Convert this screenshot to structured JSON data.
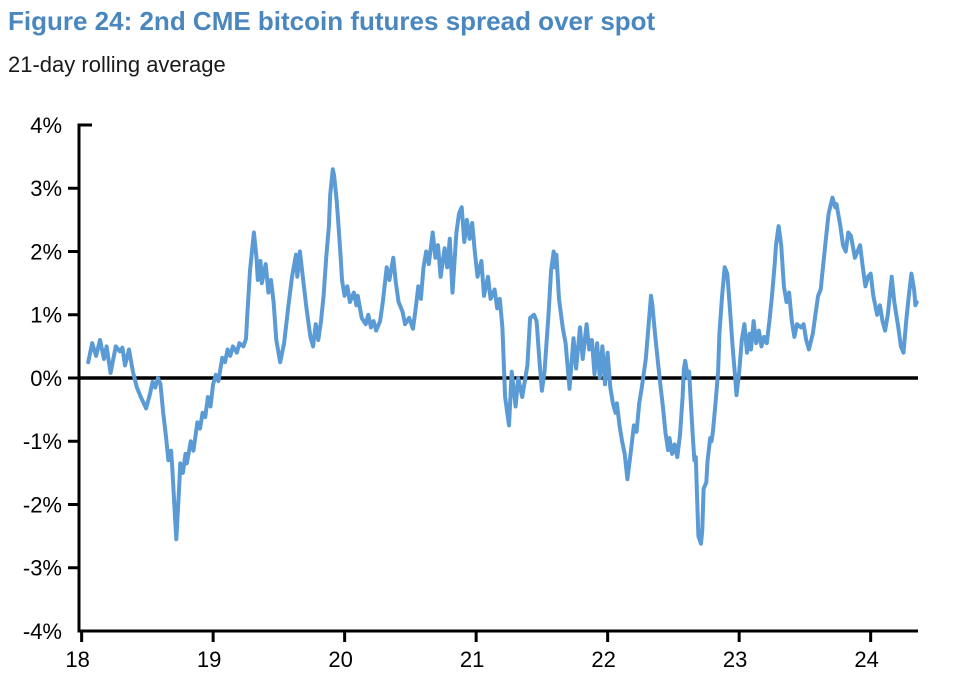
{
  "figure": {
    "title": "Figure 24: 2nd CME bitcoin futures spread over spot",
    "subtitle": "21-day rolling average"
  },
  "colors": {
    "title": "#4A87BE",
    "subtitle": "#1a1a1a",
    "line": "#5B9BD5",
    "axis": "#000000",
    "background": "#ffffff"
  },
  "chart_data": {
    "type": "line",
    "title": "Figure 24: 2nd CME bitcoin futures spread over spot",
    "subtitle": "21-day rolling average",
    "xlabel": "",
    "ylabel": "",
    "x_unit": "year (20xx)",
    "y_unit": "percent spread over spot",
    "xlim": [
      17.98,
      24.36
    ],
    "ylim": [
      -4,
      4
    ],
    "x_ticks": [
      18,
      19,
      20,
      21,
      22,
      23,
      24
    ],
    "x_tick_labels": [
      "18",
      "19",
      "20",
      "21",
      "22",
      "23",
      "24"
    ],
    "y_ticks": [
      4,
      3,
      2,
      1,
      0,
      -1,
      -2,
      -3,
      -4
    ],
    "y_tick_labels": [
      "4%",
      "3%",
      "2%",
      "1%",
      "0%",
      "-1%",
      "-2%",
      "-3%",
      "-4%"
    ],
    "grid": false,
    "zero_line": true,
    "legend_position": "none",
    "series": [
      {
        "name": "2nd CME bitcoin futures spread over spot, 21-day rolling average",
        "color": "#5B9BD5",
        "points": [
          [
            18.05,
            0.25
          ],
          [
            18.08,
            0.55
          ],
          [
            18.11,
            0.35
          ],
          [
            18.14,
            0.6
          ],
          [
            18.17,
            0.3
          ],
          [
            18.19,
            0.5
          ],
          [
            18.22,
            0.08
          ],
          [
            18.26,
            0.5
          ],
          [
            18.29,
            0.42
          ],
          [
            18.31,
            0.48
          ],
          [
            18.33,
            0.2
          ],
          [
            18.36,
            0.45
          ],
          [
            18.39,
            0.1
          ],
          [
            18.42,
            -0.15
          ],
          [
            18.45,
            -0.3
          ],
          [
            18.49,
            -0.48
          ],
          [
            18.52,
            -0.25
          ],
          [
            18.54,
            -0.06
          ],
          [
            18.56,
            -0.15
          ],
          [
            18.58,
            0.0
          ],
          [
            18.6,
            -0.1
          ],
          [
            18.62,
            -0.55
          ],
          [
            18.64,
            -0.9
          ],
          [
            18.66,
            -1.3
          ],
          [
            18.68,
            -1.15
          ],
          [
            18.69,
            -1.45
          ],
          [
            18.71,
            -2.2
          ],
          [
            18.72,
            -2.55
          ],
          [
            18.74,
            -1.8
          ],
          [
            18.75,
            -1.35
          ],
          [
            18.77,
            -1.5
          ],
          [
            18.79,
            -1.2
          ],
          [
            18.8,
            -1.35
          ],
          [
            18.83,
            -1.0
          ],
          [
            18.85,
            -1.15
          ],
          [
            18.88,
            -0.7
          ],
          [
            18.9,
            -0.8
          ],
          [
            18.92,
            -0.55
          ],
          [
            18.94,
            -0.62
          ],
          [
            18.96,
            -0.3
          ],
          [
            18.98,
            -0.45
          ],
          [
            19.0,
            -0.1
          ],
          [
            19.02,
            0.05
          ],
          [
            19.04,
            -0.05
          ],
          [
            19.06,
            0.2
          ],
          [
            19.07,
            0.32
          ],
          [
            19.09,
            0.25
          ],
          [
            19.11,
            0.45
          ],
          [
            19.13,
            0.35
          ],
          [
            19.15,
            0.5
          ],
          [
            19.18,
            0.4
          ],
          [
            19.2,
            0.55
          ],
          [
            19.23,
            0.5
          ],
          [
            19.25,
            0.62
          ],
          [
            19.26,
            1.0
          ],
          [
            19.28,
            1.7
          ],
          [
            19.31,
            2.3
          ],
          [
            19.33,
            1.9
          ],
          [
            19.34,
            1.55
          ],
          [
            19.36,
            1.85
          ],
          [
            19.37,
            1.5
          ],
          [
            19.4,
            1.8
          ],
          [
            19.42,
            1.35
          ],
          [
            19.44,
            1.55
          ],
          [
            19.46,
            1.2
          ],
          [
            19.48,
            0.6
          ],
          [
            19.51,
            0.25
          ],
          [
            19.54,
            0.55
          ],
          [
            19.57,
            1.1
          ],
          [
            19.6,
            1.6
          ],
          [
            19.63,
            1.95
          ],
          [
            19.64,
            1.6
          ],
          [
            19.66,
            2.0
          ],
          [
            19.69,
            1.45
          ],
          [
            19.71,
            1.1
          ],
          [
            19.74,
            0.65
          ],
          [
            19.76,
            0.5
          ],
          [
            19.78,
            0.85
          ],
          [
            19.8,
            0.6
          ],
          [
            19.82,
            0.9
          ],
          [
            19.84,
            1.3
          ],
          [
            19.86,
            1.9
          ],
          [
            19.88,
            2.4
          ],
          [
            19.89,
            2.9
          ],
          [
            19.91,
            3.3
          ],
          [
            19.92,
            3.2
          ],
          [
            19.94,
            2.8
          ],
          [
            19.95,
            2.5
          ],
          [
            19.97,
            1.9
          ],
          [
            19.98,
            1.55
          ],
          [
            20.0,
            1.3
          ],
          [
            20.02,
            1.45
          ],
          [
            20.04,
            1.2
          ],
          [
            20.07,
            1.35
          ],
          [
            20.09,
            1.15
          ],
          [
            20.1,
            1.3
          ],
          [
            20.13,
            0.95
          ],
          [
            20.16,
            0.85
          ],
          [
            20.18,
            1.0
          ],
          [
            20.2,
            0.8
          ],
          [
            20.22,
            0.9
          ],
          [
            20.24,
            0.75
          ],
          [
            20.27,
            0.9
          ],
          [
            20.29,
            1.2
          ],
          [
            20.32,
            1.75
          ],
          [
            20.34,
            1.55
          ],
          [
            20.37,
            1.9
          ],
          [
            20.39,
            1.5
          ],
          [
            20.41,
            1.2
          ],
          [
            20.44,
            1.05
          ],
          [
            20.46,
            0.85
          ],
          [
            20.49,
            0.95
          ],
          [
            20.52,
            0.78
          ],
          [
            20.54,
            1.1
          ],
          [
            20.56,
            1.45
          ],
          [
            20.58,
            1.25
          ],
          [
            20.6,
            1.75
          ],
          [
            20.62,
            2.0
          ],
          [
            20.64,
            1.8
          ],
          [
            20.67,
            2.3
          ],
          [
            20.69,
            1.9
          ],
          [
            20.71,
            2.1
          ],
          [
            20.73,
            1.6
          ],
          [
            20.76,
            2.05
          ],
          [
            20.78,
            1.75
          ],
          [
            20.8,
            2.2
          ],
          [
            20.82,
            1.35
          ],
          [
            20.85,
            2.3
          ],
          [
            20.87,
            2.6
          ],
          [
            20.89,
            2.7
          ],
          [
            20.91,
            2.15
          ],
          [
            20.93,
            2.5
          ],
          [
            20.95,
            2.2
          ],
          [
            20.97,
            2.45
          ],
          [
            20.99,
            2.0
          ],
          [
            21.01,
            1.6
          ],
          [
            21.04,
            1.85
          ],
          [
            21.06,
            1.3
          ],
          [
            21.09,
            1.6
          ],
          [
            21.11,
            1.25
          ],
          [
            21.14,
            1.4
          ],
          [
            21.16,
            1.1
          ],
          [
            21.18,
            1.25
          ],
          [
            21.2,
            0.8
          ],
          [
            21.22,
            -0.3
          ],
          [
            21.25,
            -0.75
          ],
          [
            21.27,
            0.1
          ],
          [
            21.3,
            -0.45
          ],
          [
            21.32,
            0.0
          ],
          [
            21.35,
            -0.3
          ],
          [
            21.37,
            -0.05
          ],
          [
            21.39,
            0.2
          ],
          [
            21.41,
            0.95
          ],
          [
            21.44,
            1.0
          ],
          [
            21.46,
            0.9
          ],
          [
            21.48,
            0.3
          ],
          [
            21.5,
            -0.2
          ],
          [
            21.52,
            0.1
          ],
          [
            21.55,
            1.0
          ],
          [
            21.57,
            1.7
          ],
          [
            21.59,
            2.0
          ],
          [
            21.6,
            1.75
          ],
          [
            21.61,
            1.95
          ],
          [
            21.63,
            1.25
          ],
          [
            21.66,
            0.78
          ],
          [
            21.68,
            0.55
          ],
          [
            21.71,
            -0.17
          ],
          [
            21.74,
            0.63
          ],
          [
            21.76,
            0.15
          ],
          [
            21.79,
            0.8
          ],
          [
            21.81,
            0.3
          ],
          [
            21.84,
            0.85
          ],
          [
            21.86,
            0.45
          ],
          [
            21.88,
            0.6
          ],
          [
            21.9,
            0.06
          ],
          [
            21.92,
            0.55
          ],
          [
            21.94,
            0.0
          ],
          [
            21.96,
            0.5
          ],
          [
            21.98,
            -0.1
          ],
          [
            22.0,
            0.4
          ],
          [
            22.02,
            -0.15
          ],
          [
            22.04,
            -0.4
          ],
          [
            22.06,
            -0.55
          ],
          [
            22.07,
            -0.4
          ],
          [
            22.09,
            -0.75
          ],
          [
            22.11,
            -1.0
          ],
          [
            22.13,
            -1.2
          ],
          [
            22.15,
            -1.6
          ],
          [
            22.18,
            -1.1
          ],
          [
            22.2,
            -0.75
          ],
          [
            22.22,
            -0.85
          ],
          [
            22.24,
            -0.4
          ],
          [
            22.26,
            -0.15
          ],
          [
            22.29,
            0.3
          ],
          [
            22.31,
            0.8
          ],
          [
            22.33,
            1.3
          ],
          [
            22.34,
            1.15
          ],
          [
            22.36,
            0.7
          ],
          [
            22.38,
            0.3
          ],
          [
            22.4,
            -0.1
          ],
          [
            22.42,
            -0.45
          ],
          [
            22.44,
            -0.87
          ],
          [
            22.46,
            -1.14
          ],
          [
            22.47,
            -0.95
          ],
          [
            22.49,
            -1.2
          ],
          [
            22.51,
            -1.05
          ],
          [
            22.53,
            -1.25
          ],
          [
            22.55,
            -0.9
          ],
          [
            22.57,
            -0.3
          ],
          [
            22.58,
            0.15
          ],
          [
            22.59,
            0.27
          ],
          [
            22.61,
            0.0
          ],
          [
            22.62,
            0.1
          ],
          [
            22.63,
            -0.3
          ],
          [
            22.65,
            -1.0
          ],
          [
            22.66,
            -1.3
          ],
          [
            22.67,
            -1.25
          ],
          [
            22.68,
            -1.9
          ],
          [
            22.69,
            -2.5
          ],
          [
            22.71,
            -2.62
          ],
          [
            22.72,
            -2.4
          ],
          [
            22.73,
            -1.75
          ],
          [
            22.75,
            -1.65
          ],
          [
            22.76,
            -1.3
          ],
          [
            22.78,
            -0.95
          ],
          [
            22.79,
            -1.0
          ],
          [
            22.8,
            -0.85
          ],
          [
            22.82,
            -0.4
          ],
          [
            22.84,
            0.1
          ],
          [
            22.85,
            0.7
          ],
          [
            22.87,
            1.3
          ],
          [
            22.89,
            1.75
          ],
          [
            22.91,
            1.65
          ],
          [
            22.93,
            1.1
          ],
          [
            22.95,
            0.5
          ],
          [
            22.97,
            0.0
          ],
          [
            22.98,
            -0.27
          ],
          [
            23.0,
            0.1
          ],
          [
            23.02,
            0.6
          ],
          [
            23.04,
            0.85
          ],
          [
            23.06,
            0.4
          ],
          [
            23.08,
            0.7
          ],
          [
            23.09,
            0.45
          ],
          [
            23.11,
            0.9
          ],
          [
            23.13,
            0.55
          ],
          [
            23.15,
            0.75
          ],
          [
            23.17,
            0.5
          ],
          [
            23.19,
            0.65
          ],
          [
            23.21,
            0.55
          ],
          [
            23.23,
            0.9
          ],
          [
            23.25,
            1.3
          ],
          [
            23.27,
            1.8
          ],
          [
            23.28,
            2.1
          ],
          [
            23.3,
            2.4
          ],
          [
            23.32,
            2.1
          ],
          [
            23.34,
            1.45
          ],
          [
            23.36,
            1.2
          ],
          [
            23.38,
            1.35
          ],
          [
            23.4,
            0.9
          ],
          [
            23.42,
            0.65
          ],
          [
            23.44,
            0.85
          ],
          [
            23.47,
            0.8
          ],
          [
            23.49,
            0.85
          ],
          [
            23.51,
            0.6
          ],
          [
            23.53,
            0.45
          ],
          [
            23.56,
            0.7
          ],
          [
            23.58,
            1.0
          ],
          [
            23.6,
            1.3
          ],
          [
            23.62,
            1.4
          ],
          [
            23.64,
            1.8
          ],
          [
            23.66,
            2.2
          ],
          [
            23.68,
            2.6
          ],
          [
            23.71,
            2.85
          ],
          [
            23.73,
            2.7
          ],
          [
            23.74,
            2.75
          ],
          [
            23.77,
            2.4
          ],
          [
            23.79,
            2.1
          ],
          [
            23.81,
            2.0
          ],
          [
            23.83,
            2.3
          ],
          [
            23.85,
            2.25
          ],
          [
            23.88,
            1.9
          ],
          [
            23.9,
            2.0
          ],
          [
            23.92,
            2.1
          ],
          [
            23.94,
            1.75
          ],
          [
            23.96,
            1.45
          ],
          [
            23.98,
            1.6
          ],
          [
            24.0,
            1.65
          ],
          [
            24.02,
            1.3
          ],
          [
            24.05,
            1.0
          ],
          [
            24.07,
            1.15
          ],
          [
            24.09,
            0.9
          ],
          [
            24.11,
            0.75
          ],
          [
            24.13,
            1.0
          ],
          [
            24.15,
            1.4
          ],
          [
            24.16,
            1.6
          ],
          [
            24.18,
            1.2
          ],
          [
            24.21,
            0.8
          ],
          [
            24.23,
            0.5
          ],
          [
            24.25,
            0.4
          ],
          [
            24.27,
            0.9
          ],
          [
            24.29,
            1.3
          ],
          [
            24.31,
            1.65
          ],
          [
            24.33,
            1.4
          ],
          [
            24.34,
            1.15
          ],
          [
            24.35,
            1.2
          ]
        ]
      }
    ]
  }
}
